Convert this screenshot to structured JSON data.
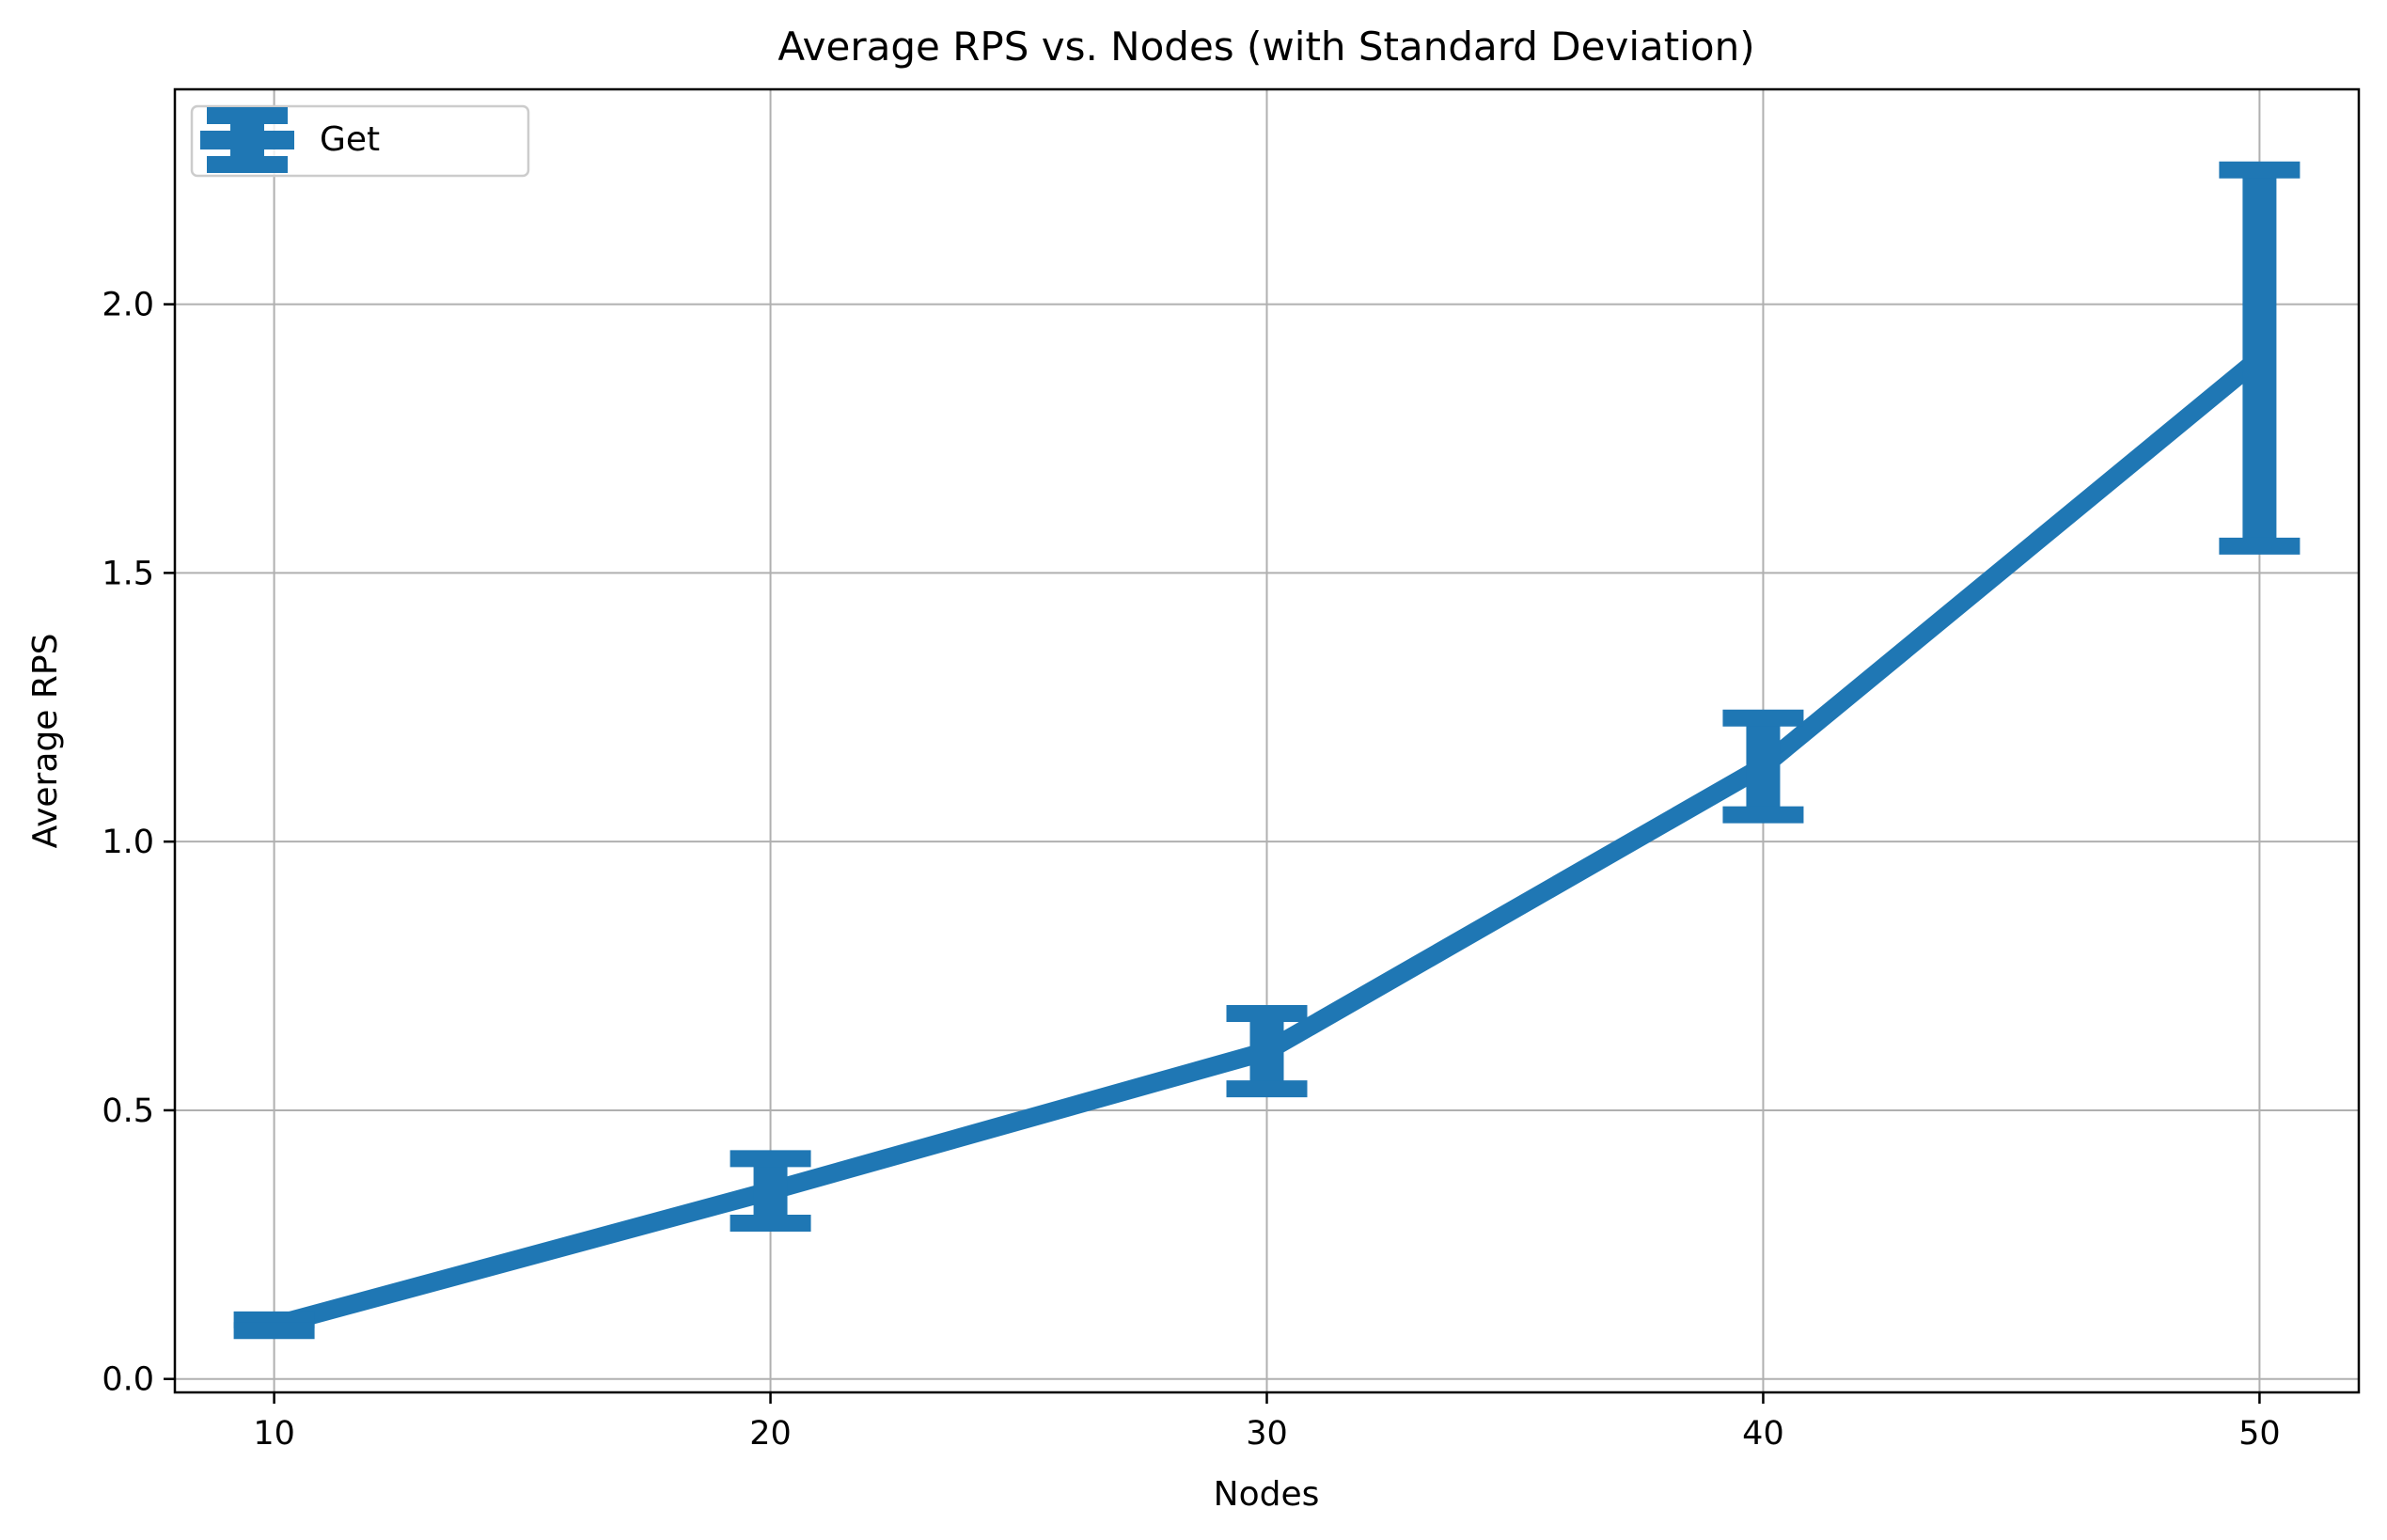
{
  "chart_data": {
    "type": "line",
    "title": "Average RPS vs. Nodes (with Standard Deviation)",
    "xlabel": "Nodes",
    "ylabel": "Average RPS",
    "xlim": [
      8,
      52
    ],
    "ylim": [
      -0.025,
      2.4
    ],
    "xticks": [
      10,
      20,
      30,
      40,
      50
    ],
    "xtick_labels": [
      "10",
      "20",
      "30",
      "40",
      "50"
    ],
    "yticks": [
      0.0,
      0.5,
      1.0,
      1.5,
      2.0
    ],
    "ytick_labels": [
      "0.0",
      "0.5",
      "1.0",
      "1.5",
      "2.0"
    ],
    "grid": true,
    "legend_position": "top-left",
    "series": [
      {
        "name": "Get",
        "color": "#1f77b4",
        "x": [
          10,
          20,
          30,
          40,
          50
        ],
        "y": [
          0.1,
          0.35,
          0.61,
          1.14,
          1.9
        ],
        "yerr": [
          0.01,
          0.06,
          0.07,
          0.09,
          0.35
        ]
      }
    ]
  }
}
